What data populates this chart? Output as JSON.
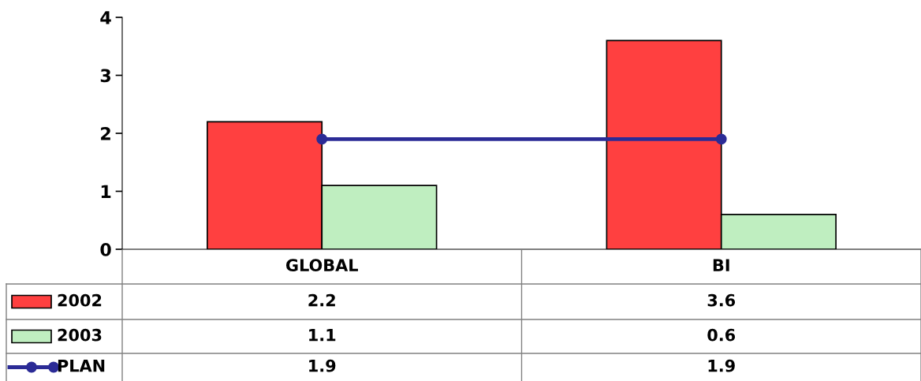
{
  "chart_data": {
    "type": "bar",
    "categories": [
      "GLOBAL",
      "BI"
    ],
    "series": [
      {
        "name": "2002",
        "color": "#ff4040",
        "values": [
          2.2,
          3.6
        ]
      },
      {
        "name": "2003",
        "color": "#bfeec0",
        "values": [
          1.1,
          0.6
        ]
      },
      {
        "name": "PLAN",
        "type": "line",
        "color": "#2b2b96",
        "values": [
          1.9,
          1.9
        ],
        "marker": "circle"
      }
    ],
    "ylim": [
      0,
      4
    ],
    "yticks": [
      0,
      1,
      2,
      3,
      4
    ],
    "grid": false,
    "legend": "bottom left",
    "data_labels": true
  }
}
